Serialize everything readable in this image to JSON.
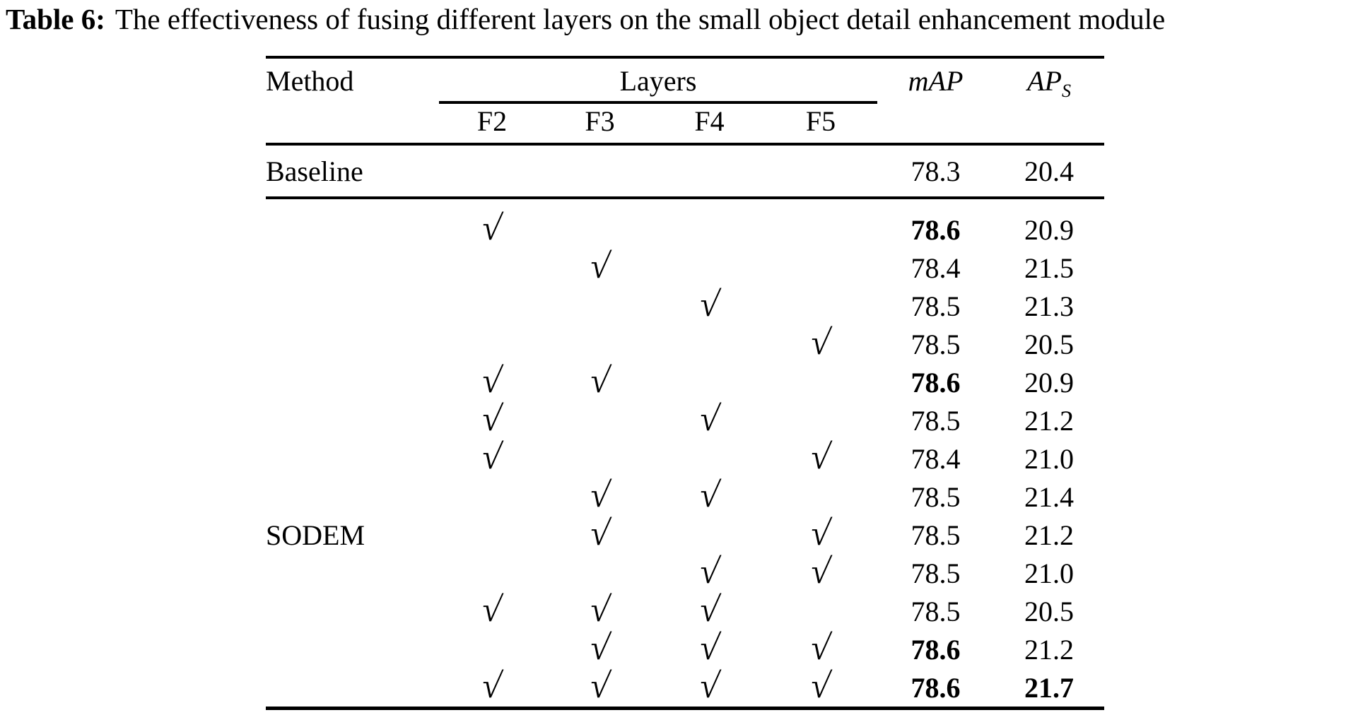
{
  "caption": {
    "label": "Table 6:",
    "text": "The effectiveness of fusing different layers on the small object detail enhancement module"
  },
  "colors": {
    "text": "#000000",
    "background": "#ffffff",
    "rule": "#000000"
  },
  "icons": {
    "check_glyph": "√"
  },
  "table": {
    "headers": {
      "method": "Method",
      "layers": "Layers",
      "layer_cols": [
        "F2",
        "F3",
        "F4",
        "F5"
      ],
      "map": "mAP",
      "aps_base": "AP",
      "aps_sub": "S"
    },
    "baseline_row": {
      "method": "Baseline",
      "map": "78.3",
      "aps": "20.4"
    },
    "sodem_label": "SODEM",
    "sodem_label_row_index": 8,
    "sodem_rows": [
      {
        "checks": [
          1,
          0,
          0,
          0
        ],
        "map": "78.6",
        "aps": "20.9",
        "map_bold": true,
        "aps_bold": false
      },
      {
        "checks": [
          0,
          1,
          0,
          0
        ],
        "map": "78.4",
        "aps": "21.5",
        "map_bold": false,
        "aps_bold": false
      },
      {
        "checks": [
          0,
          0,
          1,
          0
        ],
        "map": "78.5",
        "aps": "21.3",
        "map_bold": false,
        "aps_bold": false
      },
      {
        "checks": [
          0,
          0,
          0,
          1
        ],
        "map": "78.5",
        "aps": "20.5",
        "map_bold": false,
        "aps_bold": false
      },
      {
        "checks": [
          1,
          1,
          0,
          0
        ],
        "map": "78.6",
        "aps": "20.9",
        "map_bold": true,
        "aps_bold": false
      },
      {
        "checks": [
          1,
          0,
          1,
          0
        ],
        "map": "78.5",
        "aps": "21.2",
        "map_bold": false,
        "aps_bold": false
      },
      {
        "checks": [
          1,
          0,
          0,
          1
        ],
        "map": "78.4",
        "aps": "21.0",
        "map_bold": false,
        "aps_bold": false
      },
      {
        "checks": [
          0,
          1,
          1,
          0
        ],
        "map": "78.5",
        "aps": "21.4",
        "map_bold": false,
        "aps_bold": false
      },
      {
        "checks": [
          0,
          1,
          0,
          1
        ],
        "map": "78.5",
        "aps": "21.2",
        "map_bold": false,
        "aps_bold": false
      },
      {
        "checks": [
          0,
          0,
          1,
          1
        ],
        "map": "78.5",
        "aps": "21.0",
        "map_bold": false,
        "aps_bold": false
      },
      {
        "checks": [
          1,
          1,
          1,
          0
        ],
        "map": "78.5",
        "aps": "20.5",
        "map_bold": false,
        "aps_bold": false
      },
      {
        "checks": [
          0,
          1,
          1,
          1
        ],
        "map": "78.6",
        "aps": "21.2",
        "map_bold": true,
        "aps_bold": false
      },
      {
        "checks": [
          1,
          1,
          1,
          1
        ],
        "map": "78.6",
        "aps": "21.7",
        "map_bold": true,
        "aps_bold": true
      }
    ]
  }
}
